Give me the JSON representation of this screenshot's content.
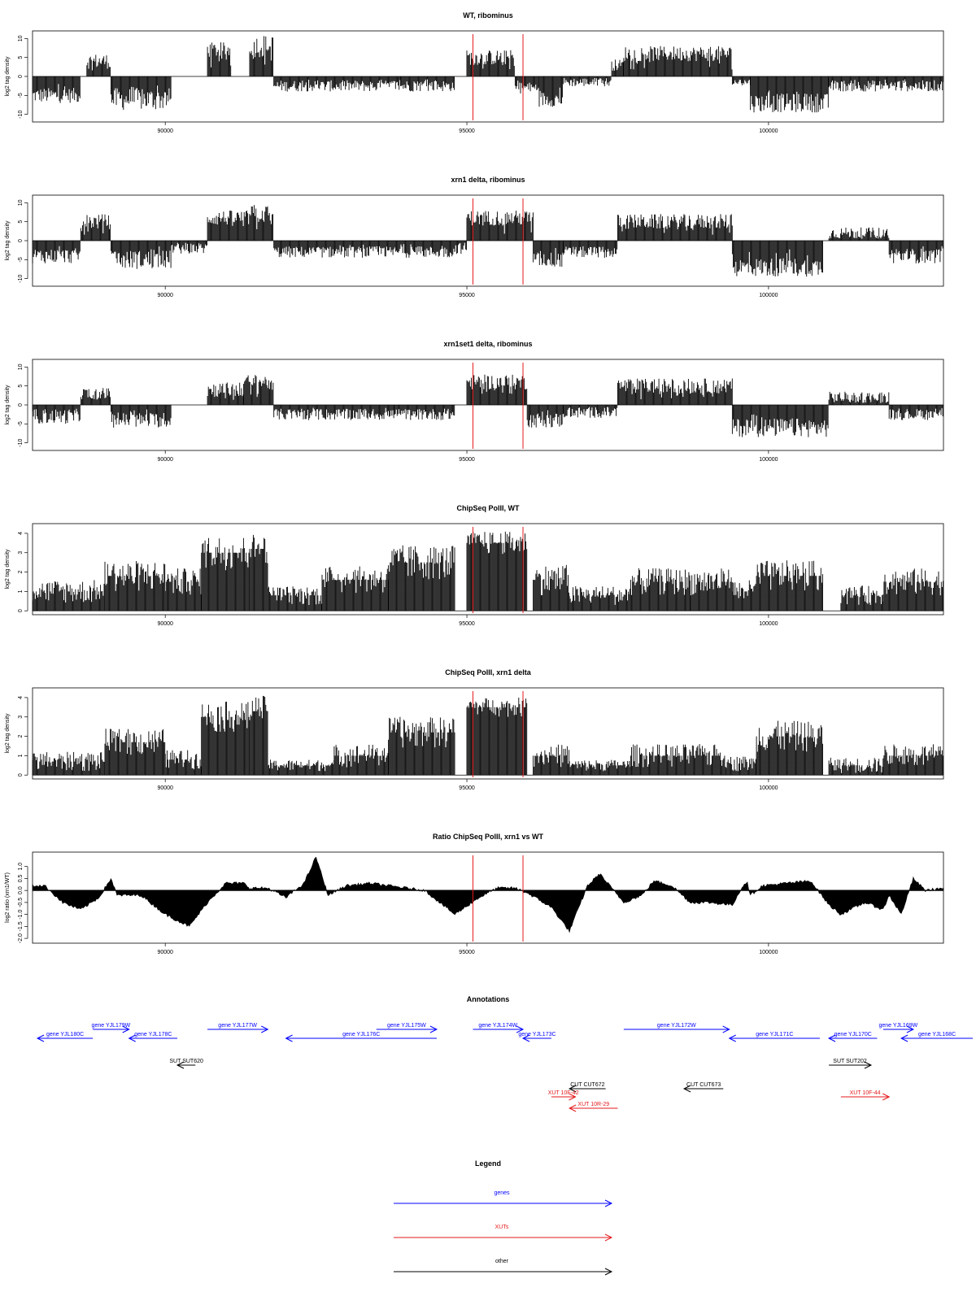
{
  "panels": [
    {
      "id": "wt-ribominus",
      "title": "WT, ribominus",
      "ylabel": "log2 tag density",
      "kind": "stranded",
      "ylim": [
        -12,
        12
      ],
      "yticks": [
        -10,
        -5,
        0,
        5,
        10
      ],
      "segments": [
        [
          87800,
          88600,
          -5,
          2
        ],
        [
          88700,
          89100,
          4,
          2
        ],
        [
          89100,
          90100,
          -6,
          3
        ],
        [
          90700,
          91100,
          7,
          2
        ],
        [
          91400,
          91800,
          8,
          3
        ],
        [
          91800,
          93900,
          -2.5,
          1.5
        ],
        [
          93900,
          94800,
          -2.5,
          1.5
        ],
        [
          95000,
          95800,
          5,
          2
        ],
        [
          95800,
          96200,
          -3,
          1.5
        ],
        [
          96200,
          96600,
          -6,
          2
        ],
        [
          96600,
          97400,
          -1.5,
          1.2
        ],
        [
          97400,
          97600,
          3,
          1.5
        ],
        [
          97600,
          99400,
          6,
          2
        ],
        [
          99400,
          99700,
          -1.5,
          1
        ],
        [
          99700,
          101000,
          -7,
          2.5
        ],
        [
          101000,
          101800,
          -2.5,
          1.5
        ],
        [
          101800,
          102900,
          -2.5,
          1.5
        ]
      ]
    },
    {
      "id": "xrn1-ribominus",
      "title": "xrn1 delta, ribominus",
      "ylabel": "log2 tag density",
      "kind": "stranded",
      "ylim": [
        -12,
        12
      ],
      "yticks": [
        -10,
        -5,
        0,
        5,
        10
      ],
      "segments": [
        [
          87800,
          88600,
          -4,
          2
        ],
        [
          88600,
          89100,
          5,
          2
        ],
        [
          89100,
          90100,
          -5,
          2.5
        ],
        [
          90100,
          90700,
          -2,
          1.5
        ],
        [
          90700,
          91400,
          6,
          2
        ],
        [
          91400,
          91800,
          7,
          2.5
        ],
        [
          91800,
          93300,
          -3,
          1.5
        ],
        [
          93300,
          94800,
          -3,
          1.5
        ],
        [
          94800,
          95000,
          -2,
          1.5
        ],
        [
          95000,
          96100,
          6,
          2
        ],
        [
          96100,
          96600,
          -5,
          2
        ],
        [
          96600,
          97500,
          -3,
          1.5
        ],
        [
          97500,
          99400,
          5,
          2
        ],
        [
          99400,
          100900,
          -7,
          2.5
        ],
        [
          101000,
          102000,
          2,
          1.5
        ],
        [
          102000,
          102900,
          -4,
          2
        ]
      ]
    },
    {
      "id": "xrn1set1-ribominus",
      "title": "xrn1set1 delta, ribominus",
      "ylabel": "log2 tag density",
      "kind": "stranded",
      "ylim": [
        -12,
        12
      ],
      "yticks": [
        -10,
        -5,
        0,
        5,
        10
      ],
      "segments": [
        [
          87800,
          88600,
          -3,
          2
        ],
        [
          88600,
          89100,
          3,
          1.5
        ],
        [
          89100,
          90100,
          -4,
          2
        ],
        [
          90700,
          91300,
          4,
          2
        ],
        [
          91300,
          91800,
          6,
          2
        ],
        [
          91800,
          93800,
          -2.5,
          1.5
        ],
        [
          93800,
          94800,
          -2.5,
          1.5
        ],
        [
          95000,
          96000,
          6,
          2
        ],
        [
          96000,
          96600,
          -4,
          2
        ],
        [
          96600,
          97500,
          -2,
          1.5
        ],
        [
          97500,
          99400,
          5,
          2
        ],
        [
          99400,
          101000,
          -6,
          2.5
        ],
        [
          101000,
          102000,
          2,
          1.5
        ],
        [
          102000,
          102900,
          -2.5,
          1.5
        ]
      ]
    },
    {
      "id": "chipseq-wt",
      "title": "ChipSeq PolII, WT",
      "ylabel": "log2 tag density",
      "kind": "density",
      "ylim": [
        -0.2,
        4.5
      ],
      "yticks": [
        0,
        1,
        2,
        3,
        4
      ],
      "segments": [
        [
          87800,
          89000,
          1,
          0.6
        ],
        [
          89000,
          90000,
          1.8,
          0.8
        ],
        [
          90000,
          90600,
          1.5,
          0.7
        ],
        [
          90600,
          91400,
          3,
          0.9
        ],
        [
          91400,
          91700,
          3.2,
          0.8
        ],
        [
          91700,
          92600,
          0.8,
          0.5
        ],
        [
          92600,
          93700,
          1.6,
          0.7
        ],
        [
          93700,
          94800,
          2.5,
          0.9
        ],
        [
          95000,
          96000,
          3.5,
          0.6
        ],
        [
          96100,
          96700,
          1.6,
          0.8
        ],
        [
          96700,
          97700,
          0.8,
          0.5
        ],
        [
          97700,
          98700,
          1.5,
          0.7
        ],
        [
          98700,
          99400,
          1.5,
          0.7
        ],
        [
          99400,
          99800,
          1,
          0.6
        ],
        [
          99800,
          100900,
          1.8,
          0.8
        ],
        [
          101200,
          101900,
          0.8,
          0.5
        ],
        [
          101900,
          102900,
          1.5,
          0.7
        ]
      ]
    },
    {
      "id": "chipseq-xrn1",
      "title": "ChipSeq PolII, xrn1 delta",
      "ylabel": "log2 tag density",
      "kind": "density",
      "ylim": [
        -0.2,
        4.5
      ],
      "yticks": [
        0,
        1,
        2,
        3,
        4
      ],
      "segments": [
        [
          87800,
          89000,
          0.7,
          0.5
        ],
        [
          89000,
          90000,
          1.7,
          0.7
        ],
        [
          90000,
          90600,
          0.8,
          0.5
        ],
        [
          90600,
          91400,
          3,
          0.8
        ],
        [
          91400,
          91700,
          3.3,
          0.8
        ],
        [
          91700,
          92800,
          0.5,
          0.3
        ],
        [
          92800,
          93700,
          1,
          0.6
        ],
        [
          93700,
          94800,
          2.2,
          0.8
        ],
        [
          95000,
          96000,
          3.5,
          0.5
        ],
        [
          96100,
          96700,
          1,
          0.6
        ],
        [
          96700,
          97700,
          0.5,
          0.3
        ],
        [
          97700,
          99300,
          1,
          0.6
        ],
        [
          99300,
          99800,
          0.6,
          0.4
        ],
        [
          99800,
          100900,
          2,
          0.8
        ],
        [
          101000,
          101900,
          0.5,
          0.4
        ],
        [
          101900,
          102900,
          1,
          0.6
        ]
      ]
    },
    {
      "id": "ratio",
      "title": "Ratio ChipSeq PolII, xrn1 vs WT",
      "ylabel": "log2 ratio (xrn1/WT)",
      "kind": "ratio",
      "ylim": [
        -2.2,
        1.6
      ],
      "yticks": [
        -2,
        -1.5,
        -1,
        -0.5,
        0,
        0.5,
        1
      ],
      "ytick_labels": [
        "-2.0",
        "-1.5",
        "-1.0",
        "-0.5",
        "0.0",
        "0.5",
        "1.0"
      ],
      "curve": [
        [
          87800,
          0.2
        ],
        [
          88000,
          0.2
        ],
        [
          88300,
          -0.5
        ],
        [
          88600,
          -0.8
        ],
        [
          88900,
          -0.3
        ],
        [
          89100,
          0.5
        ],
        [
          89200,
          -0.2
        ],
        [
          89600,
          -0.2
        ],
        [
          90000,
          -1
        ],
        [
          90400,
          -1.5
        ],
        [
          90700,
          -0.5
        ],
        [
          91000,
          0.3
        ],
        [
          91300,
          0.3
        ],
        [
          91400,
          0.1
        ],
        [
          91700,
          0.1
        ],
        [
          92000,
          -0.3
        ],
        [
          92300,
          0.3
        ],
        [
          92500,
          1.4
        ],
        [
          92700,
          -0.2
        ],
        [
          93000,
          0.2
        ],
        [
          93400,
          0.3
        ],
        [
          93700,
          0.2
        ],
        [
          94300,
          0
        ],
        [
          94800,
          -1
        ],
        [
          95200,
          -0.3
        ],
        [
          95500,
          0.1
        ],
        [
          95800,
          0.1
        ],
        [
          96000,
          -0.1
        ],
        [
          96400,
          -0.7
        ],
        [
          96700,
          -1.7
        ],
        [
          97000,
          0.2
        ],
        [
          97200,
          0.7
        ],
        [
          97600,
          -0.5
        ],
        [
          97900,
          -0.2
        ],
        [
          98100,
          0.4
        ],
        [
          98400,
          0.2
        ],
        [
          98700,
          -0.5
        ],
        [
          99000,
          -0.5
        ],
        [
          99400,
          -0.6
        ],
        [
          99600,
          0.3
        ],
        [
          99650,
          0.3
        ],
        [
          99700,
          -0.2
        ],
        [
          99900,
          0.2
        ],
        [
          100300,
          0.3
        ],
        [
          100700,
          0.4
        ],
        [
          101000,
          -0.6
        ],
        [
          101200,
          -1
        ],
        [
          101600,
          -0.5
        ],
        [
          101900,
          -0.8
        ],
        [
          102000,
          -0.2
        ],
        [
          102200,
          -1
        ],
        [
          102400,
          0.5
        ],
        [
          102600,
          0
        ],
        [
          102900,
          0.1
        ]
      ]
    }
  ],
  "xaxis": {
    "xlim": [
      87800,
      102900
    ],
    "ticks": [
      90000,
      95000,
      100000
    ]
  },
  "highlight": {
    "x": [
      95100,
      95930
    ],
    "color": "#e41a1c"
  },
  "annotations": {
    "title": "Annotations",
    "features": [
      {
        "label": "gene YJL180C",
        "x1": 87800,
        "x2": 88800,
        "dir": "left",
        "row": 1,
        "color": "#0000ff"
      },
      {
        "label": "gene YJL179W",
        "x1": 88800,
        "x2": 89400,
        "dir": "right",
        "row": 0,
        "color": "#0000ff"
      },
      {
        "label": "gene YJL178C",
        "x1": 89400,
        "x2": 90200,
        "dir": "left",
        "row": 1,
        "color": "#0000ff"
      },
      {
        "label": "gene YJL177W",
        "x1": 90700,
        "x2": 91700,
        "dir": "right",
        "row": 0,
        "color": "#0000ff"
      },
      {
        "label": "gene YJL176C",
        "x1": 92000,
        "x2": 94500,
        "dir": "left",
        "row": 1,
        "color": "#0000ff"
      },
      {
        "label": "gene YJL175W",
        "x1": 93500,
        "x2": 94500,
        "dir": "right",
        "row": 0,
        "color": "#0000ff"
      },
      {
        "label": "gene YJL174W",
        "x1": 95100,
        "x2": 95930,
        "dir": "right",
        "row": 0,
        "color": "#0000ff"
      },
      {
        "label": "gene YJL173C",
        "x1": 95930,
        "x2": 96400,
        "dir": "left",
        "row": 1,
        "color": "#0000ff"
      },
      {
        "label": "gene YJL172W",
        "x1": 97600,
        "x2": 99350,
        "dir": "right",
        "row": 0,
        "color": "#0000ff"
      },
      {
        "label": "gene YJL171C",
        "x1": 99350,
        "x2": 100850,
        "dir": "left",
        "row": 1,
        "color": "#0000ff"
      },
      {
        "label": "gene YJL170C",
        "x1": 101000,
        "x2": 101800,
        "dir": "left",
        "row": 1,
        "color": "#0000ff"
      },
      {
        "label": "gene YJL169W",
        "x1": 101900,
        "x2": 102400,
        "dir": "right",
        "row": 0,
        "color": "#0000ff"
      },
      {
        "label": "gene YJL168C",
        "x1": 102200,
        "x2": 104000,
        "dir": "left",
        "row": 1,
        "color": "#0000ff"
      },
      {
        "label": "SUT SUT620",
        "x1": 90200,
        "x2": 90500,
        "dir": "left",
        "row": 2,
        "color": "#000000"
      },
      {
        "label": "SUT SUT202",
        "x1": 101000,
        "x2": 101700,
        "dir": "right",
        "row": 2,
        "color": "#000000"
      },
      {
        "label": "CUT CUT672",
        "x1": 96700,
        "x2": 97300,
        "dir": "left",
        "row": 3,
        "color": "#000000"
      },
      {
        "label": "CUT CUT673",
        "x1": 98600,
        "x2": 99250,
        "dir": "left",
        "row": 3,
        "color": "#000000"
      },
      {
        "label": "XUT 10F-42",
        "x1": 96400,
        "x2": 96800,
        "dir": "right",
        "row": 4,
        "color": "#e41a1c"
      },
      {
        "label": "XUT 10R-29",
        "x1": 96700,
        "x2": 97500,
        "dir": "left",
        "row": 5,
        "color": "#e41a1c"
      },
      {
        "label": "XUT 10F-44",
        "x1": 101200,
        "x2": 102000,
        "dir": "right",
        "row": 4,
        "color": "#e41a1c"
      }
    ]
  },
  "legend": {
    "title": "Legend",
    "items": [
      {
        "label": "genes",
        "color": "#0000ff"
      },
      {
        "label": "XUTs",
        "color": "#e41a1c"
      },
      {
        "label": "other",
        "color": "#000000"
      }
    ]
  }
}
